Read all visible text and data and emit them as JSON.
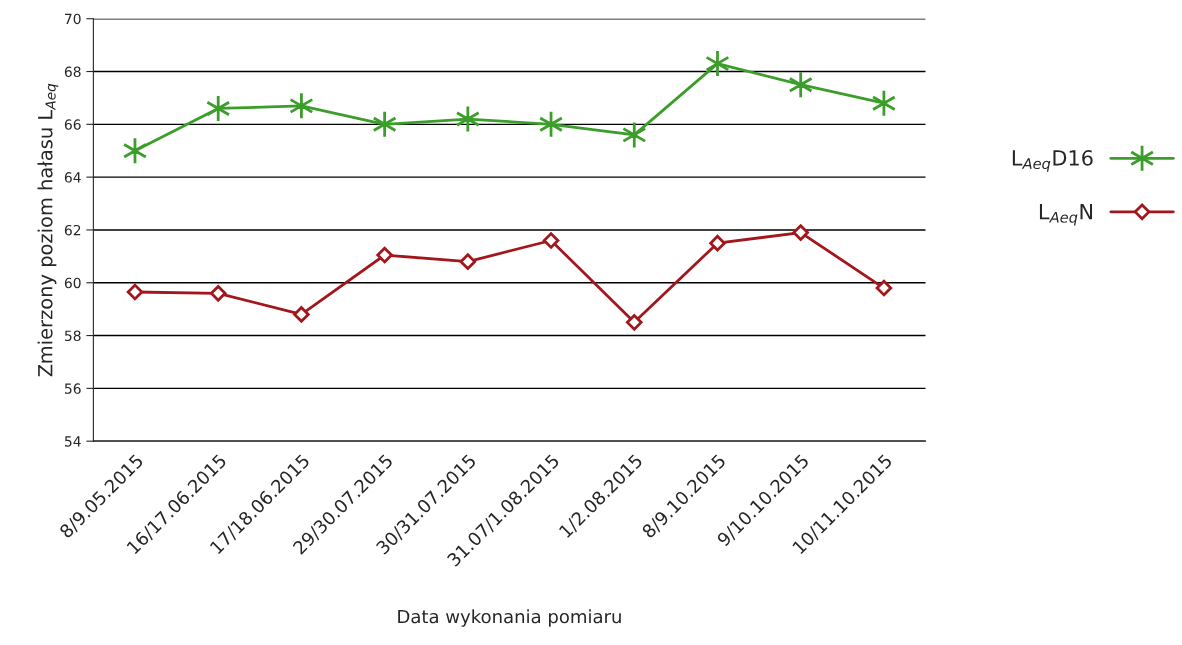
{
  "chart_data": {
    "type": "line",
    "xlabel": "Data wykonania pomiaru",
    "ylabel": "Zmierzony poziom hałasu L$_{Aeq}$",
    "categories": [
      "8/9.05.2015",
      "16/17.06.2015",
      "17/18.06.2015",
      "29/30.07.2015",
      "30/31.07.2015",
      "31.07/1.08.2015",
      "1/2.08.2015",
      "8/9.10.2015",
      "9/10.10.2015",
      "10/11.10.2015"
    ],
    "series": [
      {
        "name": "L$_{Aeq}$D16",
        "color": "#3c9e2a",
        "marker": "cross",
        "values": [
          65.0,
          66.6,
          66.7,
          66.0,
          66.2,
          66.0,
          65.6,
          68.3,
          67.5,
          66.8
        ]
      },
      {
        "name": "L$_{Aeq}$N",
        "color": "#a3161c",
        "marker": "diamond",
        "values": [
          59.65,
          59.6,
          58.8,
          61.05,
          60.8,
          61.6,
          58.5,
          61.5,
          61.9,
          59.8
        ]
      }
    ],
    "ylim": [
      54,
      70
    ],
    "yticks": [
      54,
      56,
      58,
      60,
      62,
      64,
      66,
      68,
      70
    ],
    "grid": "y",
    "legend": "right"
  }
}
